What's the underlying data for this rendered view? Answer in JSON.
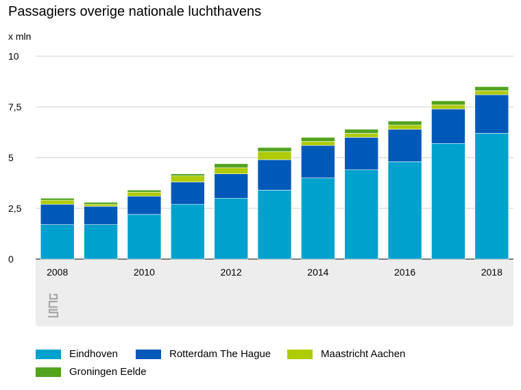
{
  "chart_data": {
    "type": "bar",
    "stacked": true,
    "title": "Passagiers overige nationale luchthavens",
    "ylabel": "x mln",
    "xlabel": "",
    "ylim": [
      0,
      10
    ],
    "yticks": [
      "0",
      "2,5",
      "5",
      "7,5",
      "10"
    ],
    "ytick_values": [
      0,
      2.5,
      5,
      7.5,
      10
    ],
    "categories": [
      "2008",
      "2009",
      "2010",
      "2011",
      "2012",
      "2013",
      "2014",
      "2015",
      "2016",
      "2017",
      "2018"
    ],
    "xtick_labels": [
      "2008",
      "",
      "2010",
      "",
      "2012",
      "",
      "2014",
      "",
      "2016",
      "",
      "2018"
    ],
    "grid": true,
    "legend_position": "bottom",
    "series": [
      {
        "name": "Eindhoven",
        "color": "#00a1cd",
        "values": [
          1.7,
          1.7,
          2.2,
          2.7,
          3.0,
          3.4,
          4.0,
          4.4,
          4.8,
          5.7,
          6.2
        ]
      },
      {
        "name": "Rotterdam The Hague",
        "color": "#0058b8",
        "values": [
          1.0,
          0.9,
          0.9,
          1.1,
          1.2,
          1.5,
          1.6,
          1.6,
          1.6,
          1.7,
          1.9
        ]
      },
      {
        "name": "Maastricht Aachen",
        "color": "#afcb05",
        "values": [
          0.2,
          0.1,
          0.2,
          0.3,
          0.3,
          0.4,
          0.2,
          0.2,
          0.2,
          0.2,
          0.2
        ]
      },
      {
        "name": "Groningen Eelde",
        "color": "#53a31d",
        "values": [
          0.1,
          0.1,
          0.1,
          0.1,
          0.2,
          0.2,
          0.2,
          0.2,
          0.2,
          0.2,
          0.2
        ]
      }
    ]
  }
}
